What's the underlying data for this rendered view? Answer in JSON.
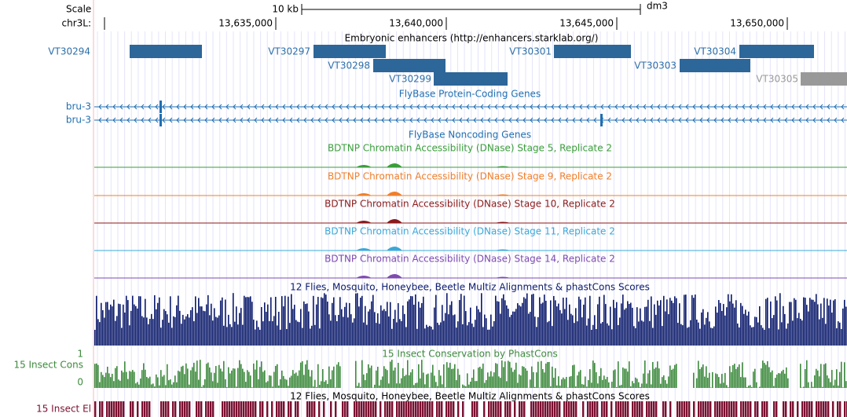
{
  "ruler": {
    "scale_label": "Scale",
    "scale_bar_label": "10 kb",
    "assembly": "dm3",
    "chrom_label": "chr3L:",
    "positions": [
      "13,635,000",
      "13,640,000",
      "13,645,000",
      "13,650,000"
    ]
  },
  "enhancers": {
    "title": "Embryonic enhancers (http://enhancers.starklab.org/)",
    "items": [
      "VT30294",
      "VT30297",
      "VT30298",
      "VT30299",
      "VT30301",
      "VT30303",
      "VT30304",
      "VT30305"
    ]
  },
  "genes": {
    "title": "FlyBase Protein-Coding Genes",
    "items": [
      "bru-3",
      "bru-3"
    ]
  },
  "noncoding": {
    "title": "FlyBase Noncoding Genes"
  },
  "dnase": [
    "BDTNP Chromatin Accessibility (DNase) Stage 5, Replicate 2",
    "BDTNP Chromatin Accessibility (DNase) Stage 9, Replicate 2",
    "BDTNP Chromatin Accessibility (DNase) Stage 10, Replicate 2",
    "BDTNP Chromatin Accessibility (DNase) Stage 11, Replicate 2",
    "BDTNP Chromatin Accessibility (DNase) Stage 14, Replicate 2"
  ],
  "multiz": {
    "title": "12 Flies, Mosquito, Honeybee, Beetle Multiz Alignments & phastCons Scores"
  },
  "cons": {
    "title": "15 Insect Conservation by PhastCons",
    "label": "15 Insect Cons",
    "top": "1",
    "bottom": "0"
  },
  "elements": {
    "title": "12 Flies, Mosquito, Honeybee, Beetle Multiz Alignments & phastCons Scores",
    "label": "15 Insect El"
  }
}
